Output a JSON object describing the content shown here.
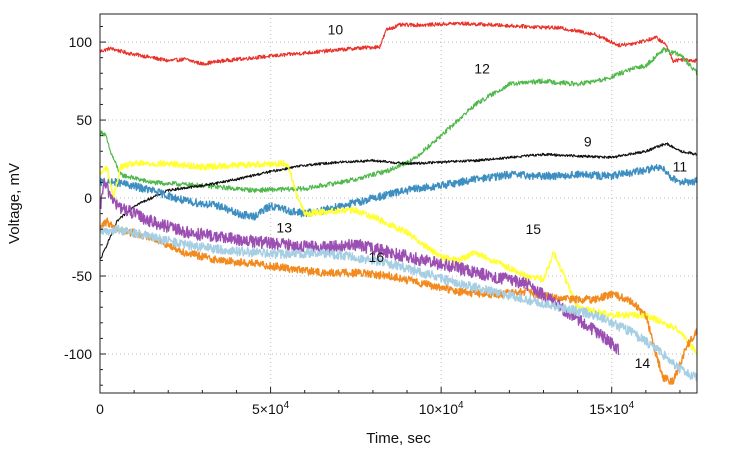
{
  "chart_data": {
    "type": "line",
    "title": "",
    "xlabel": "Time, sec",
    "ylabel": "Voltage, mV",
    "xlim": [
      0,
      175000
    ],
    "ylim": [
      -125,
      118
    ],
    "grid": true,
    "x_ticks": [
      {
        "value": 0,
        "label": "0"
      },
      {
        "value": 50000,
        "mant": "5×10",
        "exp": "4"
      },
      {
        "value": 100000,
        "mant": "10×10",
        "exp": "4"
      },
      {
        "value": 150000,
        "mant": "15×10",
        "exp": "4"
      }
    ],
    "y_ticks": [
      {
        "value": 100,
        "label": "100"
      },
      {
        "value": 50,
        "label": "50"
      },
      {
        "value": 0,
        "label": "0"
      },
      {
        "value": -50,
        "label": "-50"
      },
      {
        "value": -100,
        "label": "-100"
      }
    ],
    "series": [
      {
        "name": "10",
        "color": "#e8322a",
        "noise": 1.2,
        "x": [
          0,
          3000,
          8000,
          13000,
          20000,
          25000,
          30000,
          36000,
          45000,
          55000,
          65000,
          75000,
          82000,
          84000,
          88000,
          95000,
          105000,
          115000,
          125000,
          135000,
          145000,
          150000,
          152000,
          156000,
          160000,
          163000,
          166000,
          168000,
          171000,
          175000
        ],
        "y": [
          94,
          96,
          93,
          91,
          88,
          89,
          86,
          88,
          90,
          92,
          94,
          96,
          97,
          108,
          111,
          111,
          112,
          111,
          110,
          109,
          105,
          100,
          98,
          99,
          101,
          103,
          98,
          88,
          89,
          88
        ]
      },
      {
        "name": "12",
        "color": "#4fb84a",
        "noise": 1.5,
        "x": [
          0,
          1500,
          3000,
          6000,
          15000,
          30000,
          45000,
          60000,
          75000,
          85000,
          92000,
          100000,
          110000,
          120000,
          130000,
          140000,
          148000,
          155000,
          160000,
          165000,
          170000,
          175000
        ],
        "y": [
          42,
          41,
          30,
          15,
          10,
          8,
          5,
          6,
          12,
          18,
          25,
          40,
          60,
          73,
          75,
          73,
          76,
          82,
          85,
          95,
          92,
          80
        ]
      },
      {
        "name": "9",
        "color": "#111111",
        "noise": 0.8,
        "x": [
          0,
          2000,
          5000,
          10000,
          20000,
          30000,
          40000,
          50000,
          60000,
          70000,
          80000,
          90000,
          100000,
          110000,
          120000,
          130000,
          140000,
          150000,
          160000,
          166000,
          170000,
          175000
        ],
        "y": [
          -40,
          -30,
          -15,
          -5,
          5,
          8,
          12,
          17,
          21,
          23,
          24,
          22,
          23,
          24,
          26,
          28,
          27,
          26,
          30,
          35,
          30,
          28
        ]
      },
      {
        "name": "11",
        "color": "#3e8fc1",
        "noise": 2.5,
        "x": [
          0,
          5000,
          15000,
          25000,
          35000,
          40000,
          45000,
          50000,
          55000,
          60000,
          65000,
          70000,
          75000,
          80000,
          90000,
          100000,
          110000,
          120000,
          130000,
          140000,
          150000,
          160000,
          165000,
          168000,
          172000,
          175000
        ],
        "y": [
          10,
          10,
          5,
          -2,
          -5,
          -10,
          -12,
          -5,
          -8,
          -10,
          -8,
          -5,
          -3,
          0,
          5,
          8,
          12,
          15,
          14,
          15,
          14,
          18,
          20,
          12,
          10,
          11
        ]
      },
      {
        "name": "13",
        "color": "#ffff33",
        "noise": 2.0,
        "x": [
          0,
          2000,
          4000,
          6000,
          10000,
          20000,
          30000,
          40000,
          50000,
          55000,
          58000,
          60000,
          65000,
          70000,
          75000,
          80000,
          90000,
          100000,
          105000,
          110000,
          120000,
          125000,
          130000,
          133000,
          140000,
          150000,
          160000,
          170000,
          175000
        ],
        "y": [
          15,
          20,
          0,
          20,
          22,
          22,
          20,
          21,
          22,
          22,
          0,
          -10,
          -9,
          -8,
          -8,
          -12,
          -22,
          -38,
          -40,
          -35,
          -45,
          -50,
          -52,
          -35,
          -70,
          -75,
          -75,
          -85,
          -100
        ]
      },
      {
        "name": "14",
        "color": "#f28a1e",
        "noise": 2.5,
        "x": [
          0,
          2000,
          5000,
          15000,
          25000,
          35000,
          45000,
          55000,
          65000,
          75000,
          85000,
          95000,
          105000,
          115000,
          125000,
          135000,
          145000,
          150000,
          155000,
          160000,
          163000,
          165000,
          168000,
          172000,
          175000
        ],
        "y": [
          -20,
          -15,
          -20,
          -25,
          -35,
          -40,
          -42,
          -45,
          -48,
          -48,
          -50,
          -55,
          -60,
          -62,
          -60,
          -65,
          -65,
          -62,
          -65,
          -75,
          -100,
          -115,
          -118,
          -95,
          -85
        ]
      },
      {
        "name": "15",
        "color": "#9c4fb3",
        "noise": 4.0,
        "x": [
          0,
          1000,
          5000,
          15000,
          25000,
          35000,
          45000,
          55000,
          65000,
          75000,
          85000,
          95000,
          105000,
          115000,
          125000,
          135000,
          145000,
          152000
        ],
        "y": [
          -10,
          10,
          -5,
          -15,
          -22,
          -25,
          -28,
          -30,
          -32,
          -30,
          -35,
          -40,
          -45,
          -50,
          -55,
          -70,
          -85,
          -97
        ]
      },
      {
        "name": "16",
        "color": "#a6cfe4",
        "noise": 3.0,
        "x": [
          0,
          5000,
          15000,
          25000,
          35000,
          45000,
          55000,
          65000,
          75000,
          85000,
          95000,
          105000,
          115000,
          125000,
          135000,
          145000,
          155000,
          160000,
          165000,
          170000,
          175000
        ],
        "y": [
          -22,
          -20,
          -25,
          -30,
          -33,
          -35,
          -36,
          -35,
          -38,
          -42,
          -48,
          -55,
          -60,
          -65,
          -70,
          -75,
          -85,
          -92,
          -100,
          -110,
          -115
        ]
      }
    ],
    "annotations": [
      {
        "text": "10",
        "x": 69000,
        "y": 105
      },
      {
        "text": "12",
        "x": 112000,
        "y": 80
      },
      {
        "text": "9",
        "x": 143000,
        "y": 33
      },
      {
        "text": "11",
        "x": 170000,
        "y": 17
      },
      {
        "text": "13",
        "x": 54000,
        "y": -22
      },
      {
        "text": "15",
        "x": 127000,
        "y": -23
      },
      {
        "text": "16",
        "x": 81000,
        "y": -41
      },
      {
        "text": "14",
        "x": 159000,
        "y": -109
      }
    ]
  }
}
